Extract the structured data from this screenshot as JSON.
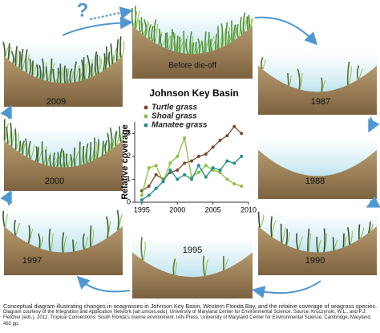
{
  "question_mark": "?",
  "panels": [
    {
      "label": "Before die-off"
    },
    {
      "label": "1987"
    },
    {
      "label": "1988"
    },
    {
      "label": "1990"
    },
    {
      "label": "1995"
    },
    {
      "label": "1997"
    },
    {
      "label": "2000"
    },
    {
      "label": "2009"
    }
  ],
  "chart_data": {
    "type": "line",
    "title": "Johnson Key Basin",
    "y_label": "Relative coverage",
    "x": [
      1995,
      1996,
      1997,
      1998,
      1999,
      2000,
      2001,
      2002,
      2003,
      2004,
      2005,
      2006,
      2007,
      2008,
      2009
    ],
    "series": [
      {
        "name": "Turtle grass",
        "color": "#7a4a2e",
        "values": [
          0.5,
          0.7,
          1.2,
          1.0,
          1.3,
          1.4,
          1.7,
          1.8,
          2.0,
          2.1,
          2.4,
          2.7,
          2.9,
          3.3,
          3.0
        ]
      },
      {
        "name": "Shoal grass",
        "color": "#8cbf3f",
        "values": [
          0.3,
          1.5,
          1.6,
          0.9,
          1.7,
          2.0,
          2.8,
          1.1,
          1.3,
          1.6,
          1.4,
          1.3,
          1.0,
          0.8,
          0.7
        ]
      },
      {
        "name": "Manatee grass",
        "color": "#1f8f8a",
        "values": [
          0.1,
          0.3,
          0.6,
          0.9,
          1.4,
          1.0,
          1.2,
          1.0,
          1.6,
          1.1,
          1.5,
          1.4,
          1.8,
          1.7,
          2.0
        ]
      }
    ],
    "xlim": [
      1994,
      2010
    ],
    "ylim": [
      0,
      3.5
    ],
    "xticks": [
      1995,
      2000,
      2005,
      2010
    ],
    "yticks": [
      0,
      1,
      2,
      3
    ]
  },
  "caption": {
    "title": "Conceptual diagram illustrating changes in seagrasses in Johnson Key Basin, Western Florida Bay, and the relative coverage of seagrass species.",
    "credit": "Diagram courtesy of the Integration and Application Network (ian.umces.edu), University of Maryland Center for Environmental Science. Source: Kruczynski, W.L., and P.J. Fletcher (eds.). 2012. Tropical Connections: South Florida's marine environment. IAN Press, University of Maryland Center for Environmental Science, Cambridge, Maryland. 492 pp."
  }
}
